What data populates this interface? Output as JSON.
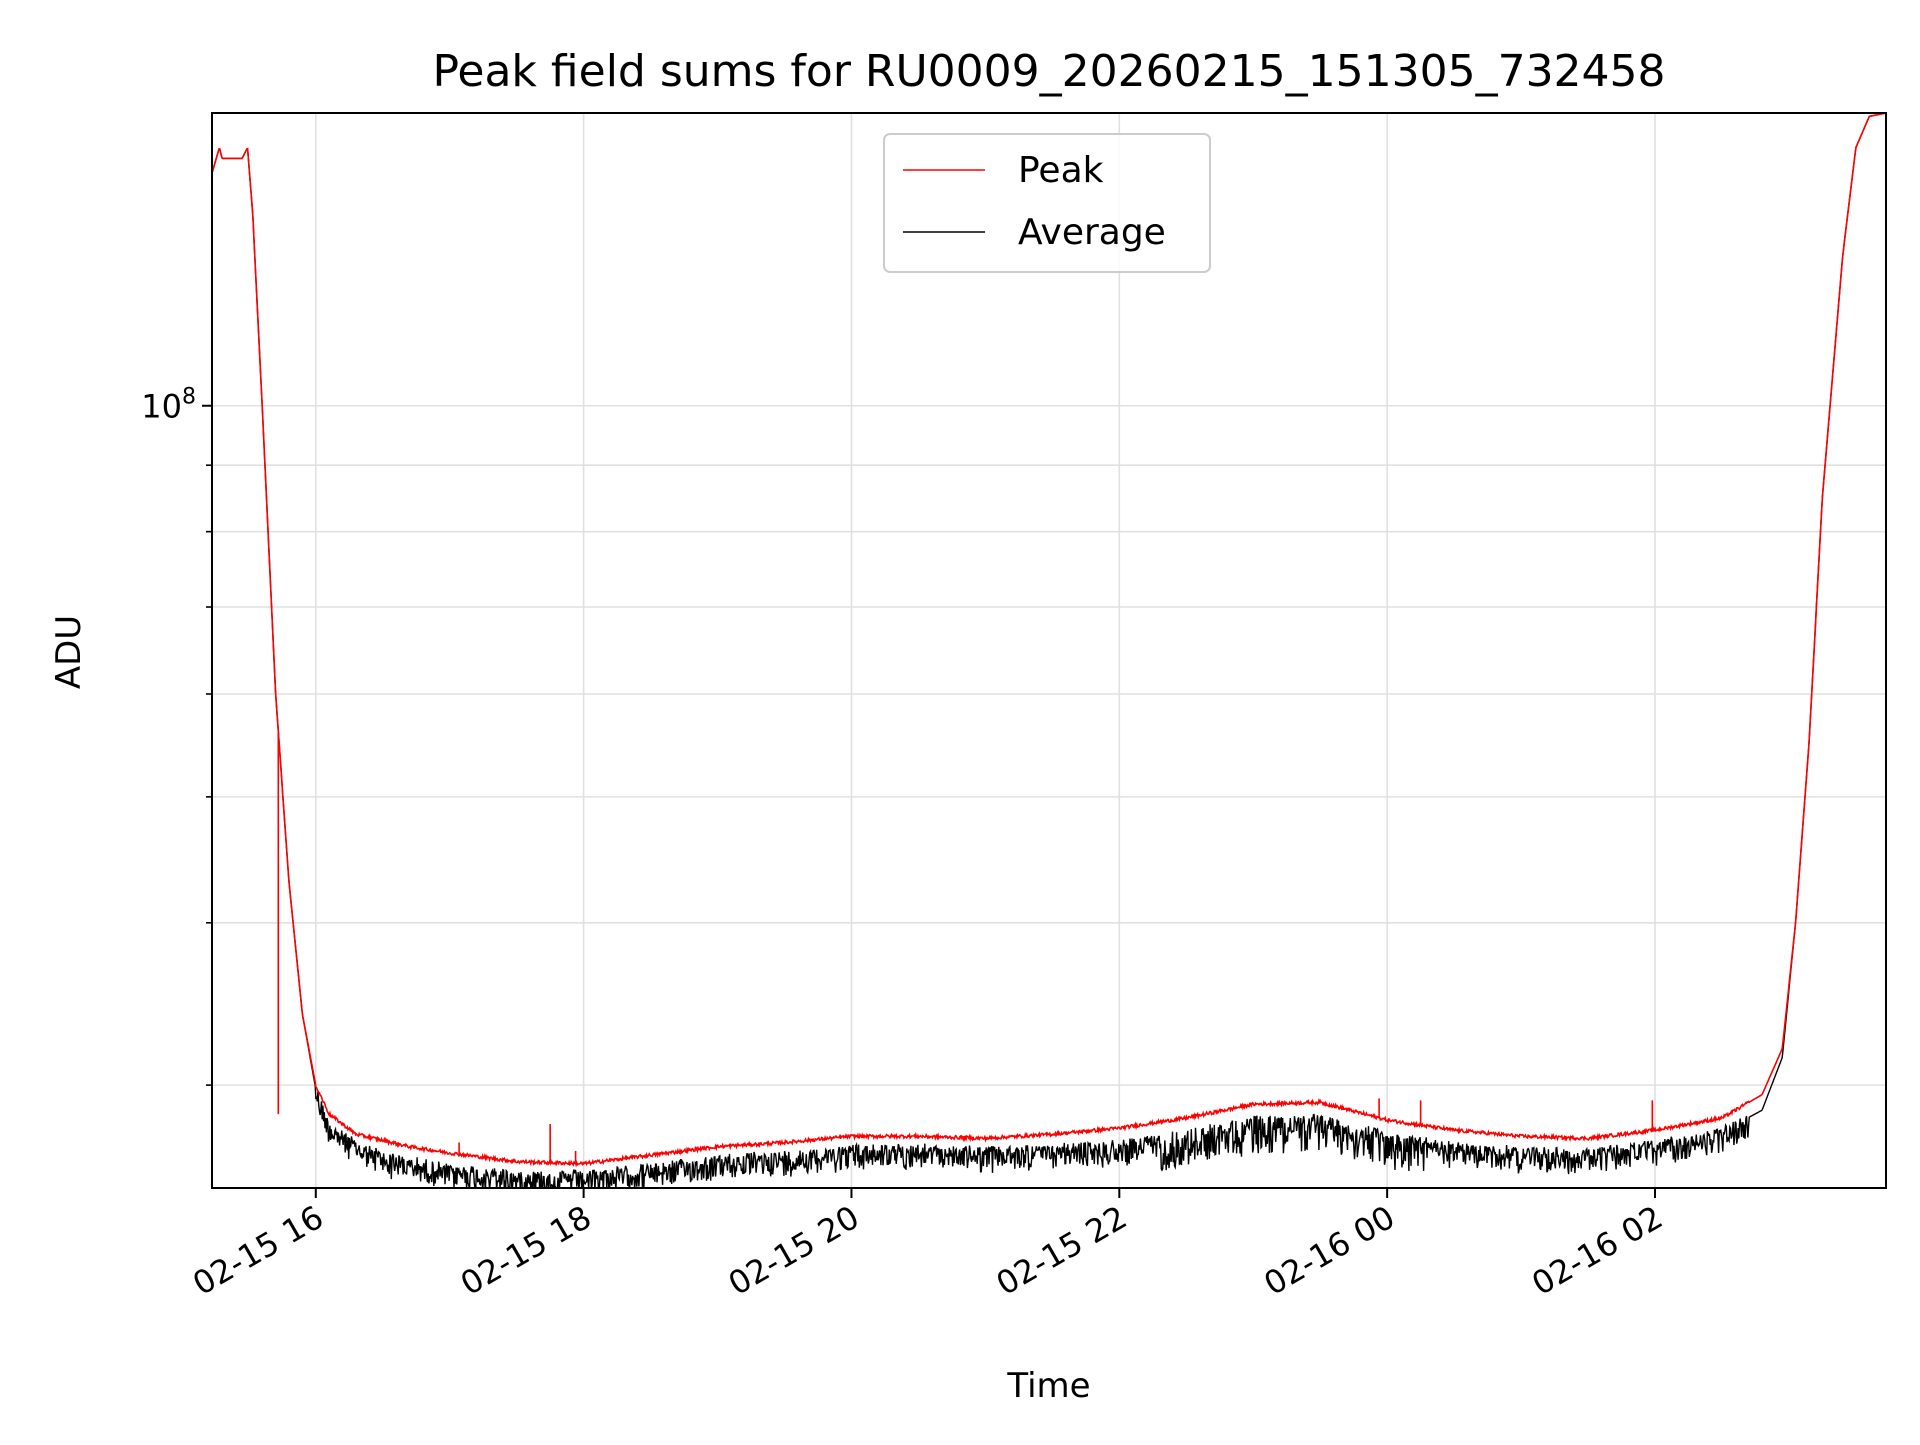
{
  "chart_data": {
    "type": "line",
    "title": "Peak field sums for RU0009_20260215_151305_732458",
    "xlabel": "Time",
    "ylabel": "ADU",
    "y_scale": "log",
    "ylim": [
      25000000,
      168000000
    ],
    "y_major_ticks": [
      {
        "value": 100000000,
        "base": "10",
        "exponent": "8"
      }
    ],
    "y_minor_ticks": [
      30000000,
      40000000,
      50000000,
      60000000,
      70000000,
      80000000,
      90000000,
      200000000
    ],
    "x_units": "hours after 02-15 15:00",
    "xlim": [
      0.225,
      12.725
    ],
    "x_ticks": [
      {
        "value": 1,
        "label": "02-15 16"
      },
      {
        "value": 3,
        "label": "02-15 18"
      },
      {
        "value": 5,
        "label": "02-15 20"
      },
      {
        "value": 7,
        "label": "02-15 22"
      },
      {
        "value": 9,
        "label": "02-16 00"
      },
      {
        "value": 11,
        "label": "02-16 02"
      }
    ],
    "grid": true,
    "legend": {
      "position": "upper-center"
    },
    "series": [
      {
        "name": "Peak",
        "color": "#ff0000",
        "x": [
          0.225,
          0.28,
          0.3,
          0.45,
          0.49,
          0.53,
          0.6,
          0.7,
          0.8,
          0.9,
          1.0,
          1.1,
          1.3,
          1.5,
          1.7,
          2.0,
          2.5,
          3.0,
          3.5,
          4.0,
          4.5,
          5.0,
          5.5,
          6.0,
          6.5,
          7.0,
          7.5,
          8.0,
          8.5,
          9.0,
          9.5,
          10.0,
          10.5,
          11.0,
          11.5,
          11.8,
          11.95,
          12.05,
          12.15,
          12.25,
          12.4,
          12.5,
          12.6,
          12.725
        ],
        "y": [
          151000000,
          158000000,
          155000000,
          155000000,
          158000000,
          140000000,
          100000000,
          60000000,
          43000000,
          34000000,
          30000000,
          28500000,
          27500000,
          27200000,
          26900000,
          26600000,
          26200000,
          26100000,
          26500000,
          26900000,
          27100000,
          27400000,
          27400000,
          27300000,
          27500000,
          27800000,
          28300000,
          29000000,
          29100000,
          28200000,
          27700000,
          27400000,
          27300000,
          27700000,
          28300000,
          29500000,
          32000000,
          40000000,
          55000000,
          85000000,
          130000000,
          158000000,
          167000000,
          168000000
        ]
      },
      {
        "name": "Average",
        "color": "#000000",
        "x": [
          0.225,
          0.28,
          0.3,
          0.45,
          0.49,
          0.53,
          0.6,
          0.7,
          0.8,
          0.9,
          1.0,
          1.1,
          1.3,
          1.5,
          1.7,
          2.0,
          2.5,
          3.0,
          3.5,
          4.0,
          4.5,
          5.0,
          5.5,
          6.0,
          6.5,
          7.0,
          7.5,
          8.0,
          8.5,
          9.0,
          9.5,
          10.0,
          10.5,
          11.0,
          11.5,
          11.8,
          11.95,
          12.05,
          12.15,
          12.25,
          12.4,
          12.5,
          12.6,
          12.725
        ],
        "y": [
          151000000,
          158000000,
          155000000,
          155000000,
          158000000,
          140000000,
          100000000,
          60000000,
          43000000,
          34000000,
          29800000,
          28000000,
          27000000,
          26500000,
          26200000,
          25900000,
          25600000,
          25600000,
          25900000,
          26300000,
          26500000,
          26800000,
          26800000,
          26700000,
          26800000,
          27000000,
          27500000,
          28200000,
          28300000,
          27400000,
          26900000,
          26700000,
          26600000,
          27000000,
          27600000,
          28700000,
          31500000,
          40000000,
          55000000,
          85000000,
          130000000,
          158000000,
          167000000,
          168000000
        ]
      }
    ],
    "annotations": [
      {
        "type": "spike",
        "series": "Peak",
        "x": 0.72,
        "y": 28500000
      },
      {
        "type": "spike",
        "series": "Peak",
        "x": 1.4,
        "y": 27500000
      },
      {
        "type": "spike",
        "series": "Peak",
        "x": 2.07,
        "y": 27100000
      },
      {
        "type": "spike",
        "series": "Peak",
        "x": 2.75,
        "y": 28000000
      },
      {
        "type": "spike",
        "series": "Peak",
        "x": 2.94,
        "y": 26700000
      },
      {
        "type": "spike",
        "series": "Peak",
        "x": 8.94,
        "y": 29300000
      },
      {
        "type": "spike",
        "series": "Peak",
        "x": 9.25,
        "y": 29200000
      },
      {
        "type": "spike",
        "series": "Peak",
        "x": 10.98,
        "y": 29200000
      },
      {
        "type": "spike",
        "series": "Peak",
        "x": 11.24,
        "y": 28000000
      }
    ]
  }
}
